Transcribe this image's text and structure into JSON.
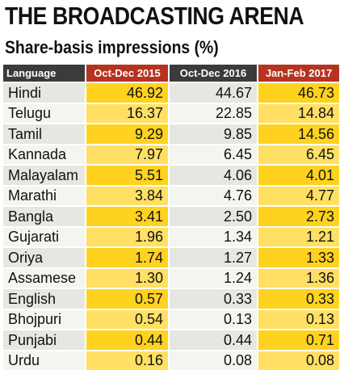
{
  "title": "THE BROADCASTING ARENA",
  "subtitle": "Share-basis impressions (%)",
  "chart_data": {
    "type": "table",
    "title": "THE BROADCASTING ARENA",
    "subtitle": "Share-basis impressions (%)",
    "columns": [
      "Language",
      "Oct-Dec 2015",
      "Oct-Dec 2016",
      "Jan-Feb 2017"
    ],
    "rows": [
      {
        "language": "Hindi",
        "oct_dec_2015": "46.92",
        "oct_dec_2016": "44.67",
        "jan_feb_2017": "46.73"
      },
      {
        "language": "Telugu",
        "oct_dec_2015": "16.37",
        "oct_dec_2016": "22.85",
        "jan_feb_2017": "14.84"
      },
      {
        "language": "Tamil",
        "oct_dec_2015": "9.29",
        "oct_dec_2016": "9.85",
        "jan_feb_2017": "14.56"
      },
      {
        "language": "Kannada",
        "oct_dec_2015": "7.97",
        "oct_dec_2016": "6.45",
        "jan_feb_2017": "6.45"
      },
      {
        "language": "Malayalam",
        "oct_dec_2015": "5.51",
        "oct_dec_2016": "4.06",
        "jan_feb_2017": "4.01"
      },
      {
        "language": "Marathi",
        "oct_dec_2015": "3.84",
        "oct_dec_2016": "4.76",
        "jan_feb_2017": "4.77"
      },
      {
        "language": "Bangla",
        "oct_dec_2015": "3.41",
        "oct_dec_2016": "2.50",
        "jan_feb_2017": "2.73"
      },
      {
        "language": "Gujarati",
        "oct_dec_2015": "1.96",
        "oct_dec_2016": "1.34",
        "jan_feb_2017": "1.21"
      },
      {
        "language": "Oriya",
        "oct_dec_2015": "1.74",
        "oct_dec_2016": "1.27",
        "jan_feb_2017": "1.33"
      },
      {
        "language": "Assamese",
        "oct_dec_2015": "1.30",
        "oct_dec_2016": "1.24",
        "jan_feb_2017": "1.36"
      },
      {
        "language": "English",
        "oct_dec_2015": "0.57",
        "oct_dec_2016": "0.33",
        "jan_feb_2017": "0.33"
      },
      {
        "language": "Bhojpuri",
        "oct_dec_2015": "0.54",
        "oct_dec_2016": "0.13",
        "jan_feb_2017": "0.13"
      },
      {
        "language": "Punjabi",
        "oct_dec_2015": "0.44",
        "oct_dec_2016": "0.44",
        "jan_feb_2017": "0.71"
      },
      {
        "language": "Urdu",
        "oct_dec_2015": "0.16",
        "oct_dec_2016": "0.08",
        "jan_feb_2017": "0.08"
      }
    ]
  },
  "colors": {
    "header_dark": "#3b3b3b",
    "header_accent": "#b5331f",
    "highlight_yellow": "#ffd21f",
    "row_grey": "#e6e7e1"
  }
}
